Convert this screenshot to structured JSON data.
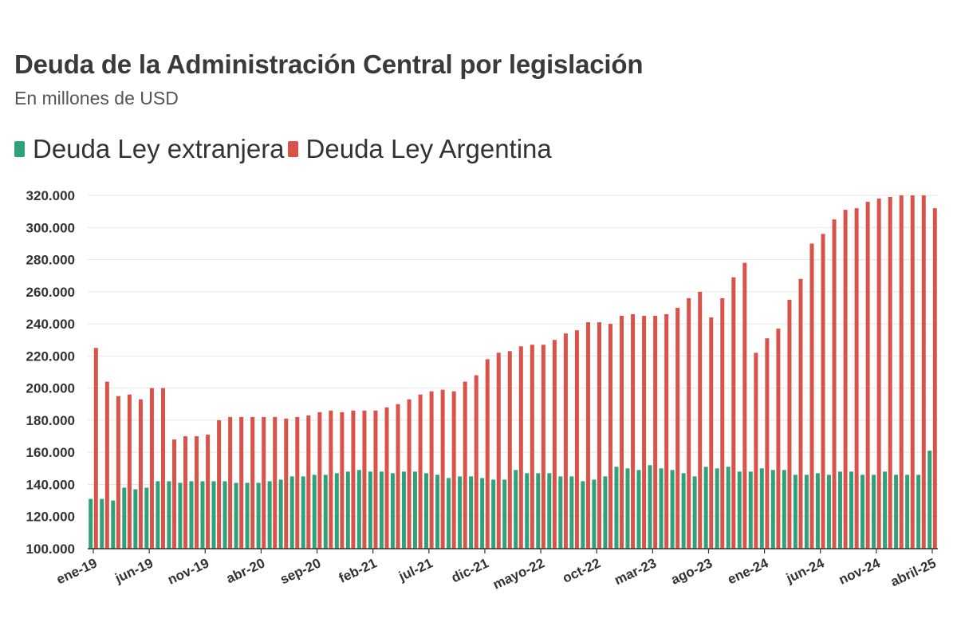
{
  "chart_data": {
    "type": "bar",
    "title": "Deuda de la Administración Central por legislación",
    "subtitle": "En millones de USD",
    "xlabel": "",
    "ylabel": "",
    "ylim": [
      100000,
      320000
    ],
    "yticks": [
      100000,
      120000,
      140000,
      160000,
      180000,
      200000,
      220000,
      240000,
      260000,
      280000,
      300000,
      320000
    ],
    "ytick_labels": [
      "100.000",
      "120.000",
      "140.000",
      "160.000",
      "180.000",
      "200.000",
      "220.000",
      "240.000",
      "260.000",
      "280.000",
      "300.000",
      "320.000"
    ],
    "grid": true,
    "legend_position": "top-left",
    "categories": [
      "ene-19",
      "feb-19",
      "mar-19",
      "abr-19",
      "may-19",
      "jun-19",
      "jul-19",
      "ago-19",
      "sep-19",
      "oct-19",
      "nov-19",
      "dic-19",
      "ene-20",
      "feb-20",
      "mar-20",
      "abr-20",
      "may-20",
      "jun-20",
      "jul-20",
      "ago-20",
      "sep-20",
      "oct-20",
      "nov-20",
      "dic-20",
      "ene-21",
      "feb-21",
      "mar-21",
      "abr-21",
      "may-21",
      "jun-21",
      "jul-21",
      "ago-21",
      "sep-21",
      "oct-21",
      "nov-21",
      "dic-21",
      "ene-22",
      "feb-22",
      "mar-22",
      "abr-22",
      "mayo-22",
      "jun-22",
      "jul-22",
      "ago-22",
      "sep-22",
      "oct-22",
      "nov-22",
      "dic-22",
      "ene-23",
      "feb-23",
      "mar-23",
      "abr-23",
      "may-23",
      "jun-23",
      "jul-23",
      "ago-23",
      "sep-23",
      "oct-23",
      "nov-23",
      "dic-23",
      "ene-24",
      "feb-24",
      "mar-24",
      "abr-24",
      "may-24",
      "jun-24",
      "jul-24",
      "ago-24",
      "sep-24",
      "oct-24",
      "nov-24",
      "dic-24",
      "ene-25",
      "feb-25",
      "mar-25",
      "abril-25"
    ],
    "xtick_labels": [
      "ene-19",
      "jun-19",
      "nov-19",
      "abr-20",
      "sep-20",
      "feb-21",
      "jul-21",
      "dic-21",
      "mayo-22",
      "oct-22",
      "mar-23",
      "ago-23",
      "ene-24",
      "jun-24",
      "nov-24",
      "abril-25"
    ],
    "series": [
      {
        "name": "Deuda Ley extranjera",
        "color": "#2ea37a",
        "values": [
          131000,
          131000,
          130000,
          138000,
          137000,
          138000,
          142000,
          142000,
          141000,
          142000,
          142000,
          142000,
          142000,
          141000,
          141000,
          141000,
          142000,
          143000,
          145000,
          145000,
          146000,
          146000,
          147000,
          148000,
          149000,
          148000,
          148000,
          147000,
          148000,
          148000,
          147000,
          146000,
          144000,
          145000,
          145000,
          144000,
          143000,
          143000,
          149000,
          147000,
          147000,
          147000,
          145000,
          145000,
          142000,
          143000,
          145000,
          151000,
          150000,
          149000,
          152000,
          150000,
          149000,
          147000,
          145000,
          151000,
          150000,
          151000,
          148000,
          148000,
          150000,
          149000,
          149000,
          146000,
          146000,
          147000,
          146000,
          148000,
          148000,
          146000,
          146000,
          148000,
          146000,
          146000,
          146000,
          161000
        ]
      },
      {
        "name": "Deuda Ley Argentina",
        "color": "#d9534a",
        "values": [
          225000,
          204000,
          195000,
          196000,
          193000,
          200000,
          200000,
          168000,
          170000,
          170000,
          171000,
          180000,
          182000,
          182000,
          182000,
          182000,
          182000,
          181000,
          182000,
          183000,
          185000,
          186000,
          185000,
          186000,
          186000,
          186000,
          188000,
          190000,
          193000,
          196000,
          198000,
          199000,
          198000,
          204000,
          208000,
          218000,
          222000,
          223000,
          226000,
          227000,
          227000,
          230000,
          234000,
          236000,
          241000,
          241000,
          240000,
          245000,
          246000,
          245000,
          245000,
          246000,
          250000,
          256000,
          260000,
          244000,
          256000,
          269000,
          278000,
          222000,
          231000,
          237000,
          255000,
          268000,
          290000,
          296000,
          305000,
          311000,
          312000,
          316000,
          318000,
          319000,
          320000,
          320000,
          320000,
          312000
        ]
      }
    ]
  },
  "legend": {
    "items": [
      {
        "label": "Deuda Ley extranjera",
        "color": "#2ea37a"
      },
      {
        "label": "Deuda Ley Argentina",
        "color": "#d9534a"
      }
    ]
  }
}
